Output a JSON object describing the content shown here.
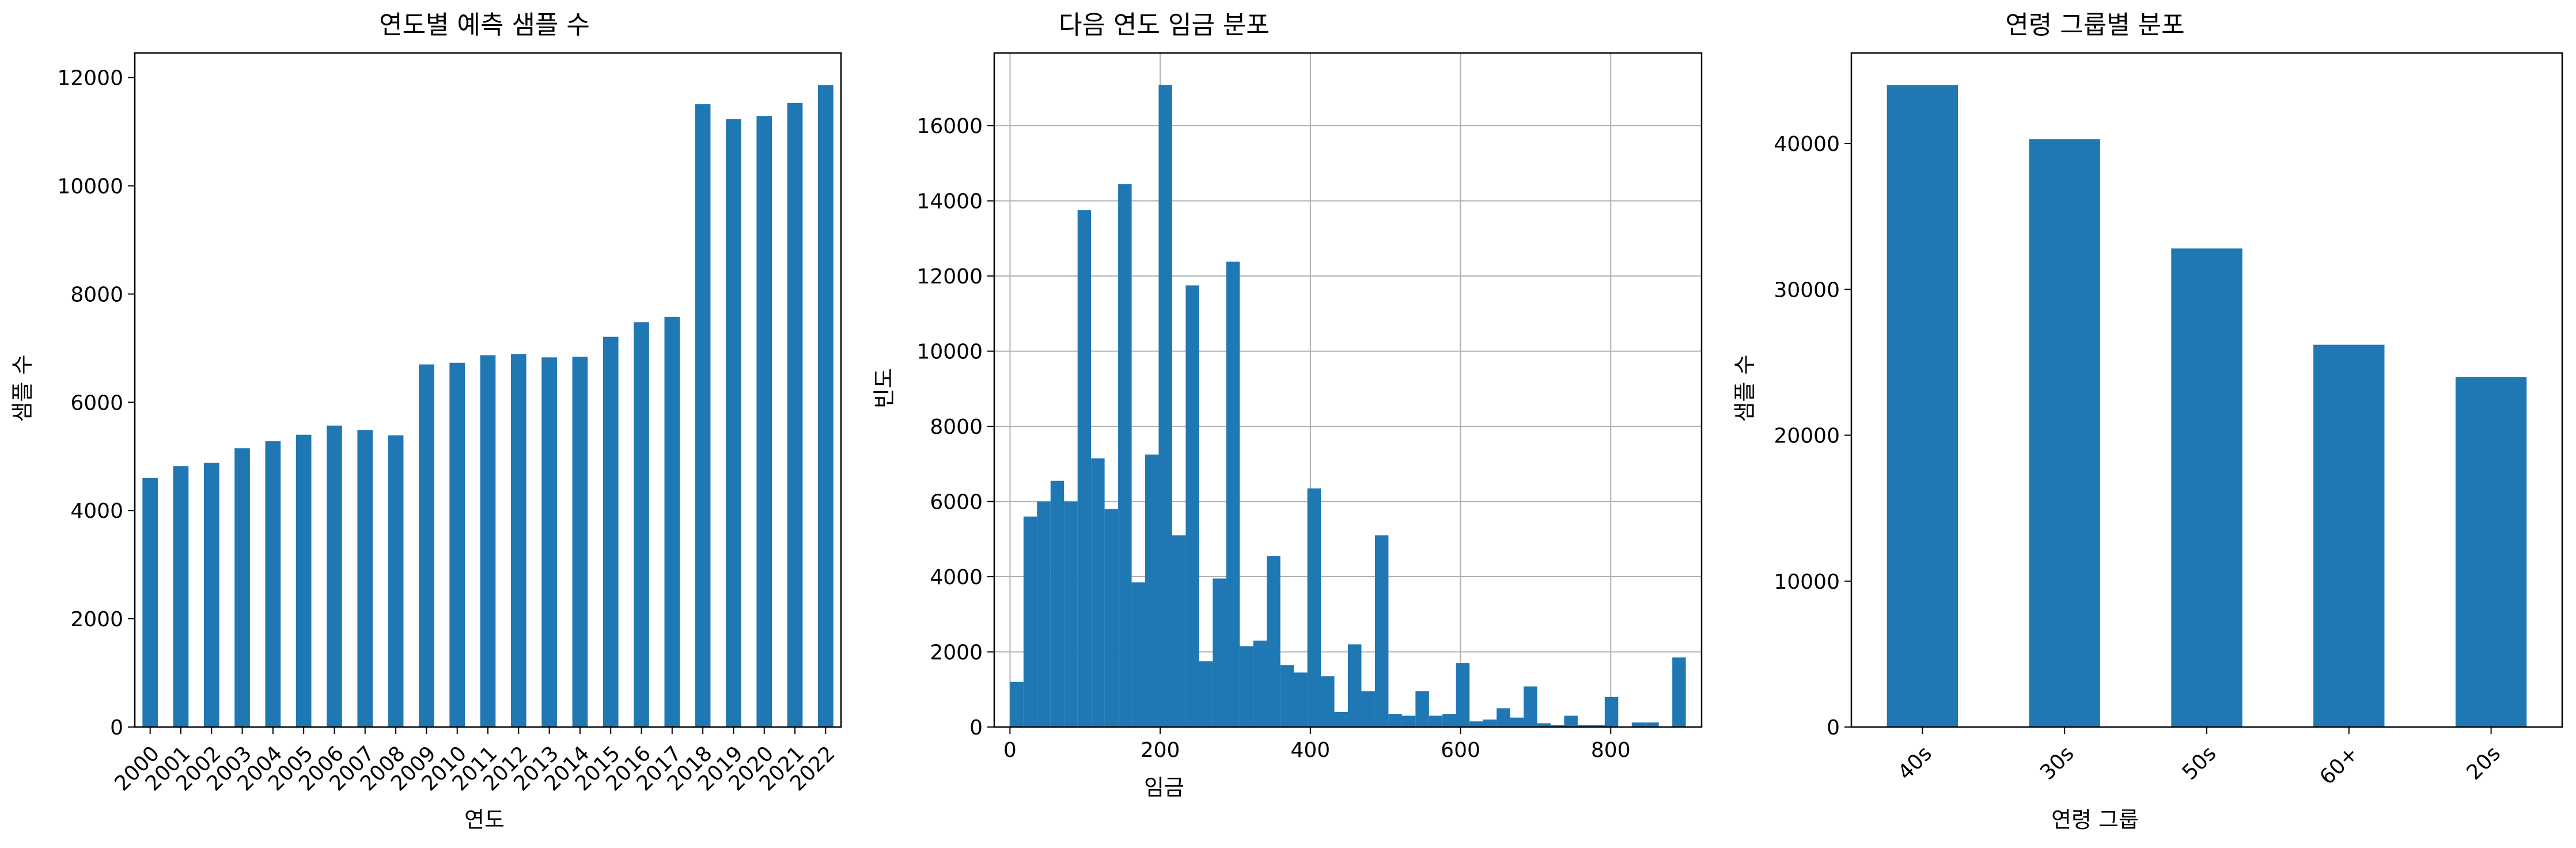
{
  "colors": {
    "bar": "#1f77b4",
    "grid": "#b0b0b0",
    "axis": "#000000",
    "background": "#ffffff"
  },
  "chart_data": [
    {
      "type": "bar",
      "title": "연도별 예측 샘플 수",
      "xlabel": "연도",
      "ylabel": "샘플 수",
      "categories": [
        "2000",
        "2001",
        "2002",
        "2003",
        "2004",
        "2005",
        "2006",
        "2007",
        "2008",
        "2009",
        "2010",
        "2011",
        "2012",
        "2013",
        "2014",
        "2015",
        "2016",
        "2017",
        "2018",
        "2019",
        "2020",
        "2021",
        "2022"
      ],
      "values": [
        4600,
        4820,
        4880,
        5150,
        5280,
        5400,
        5570,
        5490,
        5390,
        6700,
        6730,
        6870,
        6890,
        6830,
        6840,
        7210,
        7480,
        7580,
        11510,
        11230,
        11290,
        11530,
        11860
      ],
      "ylim": [
        0,
        12454
      ],
      "yticks": [
        0,
        2000,
        4000,
        6000,
        8000,
        10000,
        12000
      ],
      "grid": false
    },
    {
      "type": "bar",
      "subtype": "histogram",
      "title": "다음 연도 임금 분포",
      "xlabel": "임금",
      "ylabel": "빈도",
      "bin_start": 0,
      "bin_width": 18,
      "values": [
        1200,
        5600,
        6000,
        6550,
        6000,
        13750,
        7150,
        5800,
        14450,
        3850,
        7250,
        17080,
        5100,
        11750,
        1750,
        3950,
        12380,
        2150,
        2300,
        4550,
        1650,
        1450,
        6350,
        1350,
        400,
        2200,
        950,
        5100,
        350,
        300,
        950,
        300,
        350,
        1700,
        150,
        200,
        500,
        250,
        1080,
        100,
        50,
        300,
        50,
        50,
        800,
        0,
        120,
        120,
        0,
        1850
      ],
      "xlim": [
        -21,
        921
      ],
      "ylim": [
        0,
        17934
      ],
      "xticks": [
        0,
        200,
        400,
        600,
        800
      ],
      "yticks": [
        0,
        2000,
        4000,
        6000,
        8000,
        10000,
        12000,
        14000,
        16000
      ],
      "grid": true
    },
    {
      "type": "bar",
      "title": "연령 그룹별 분포",
      "xlabel": "연령 그룹",
      "ylabel": "샘플 수",
      "categories": [
        "40s",
        "30s",
        "50s",
        "60+",
        "20s"
      ],
      "values": [
        44000,
        40300,
        32800,
        26200,
        24000
      ],
      "ylim": [
        0,
        46200
      ],
      "yticks": [
        0,
        10000,
        20000,
        30000,
        40000
      ],
      "grid": false
    }
  ]
}
